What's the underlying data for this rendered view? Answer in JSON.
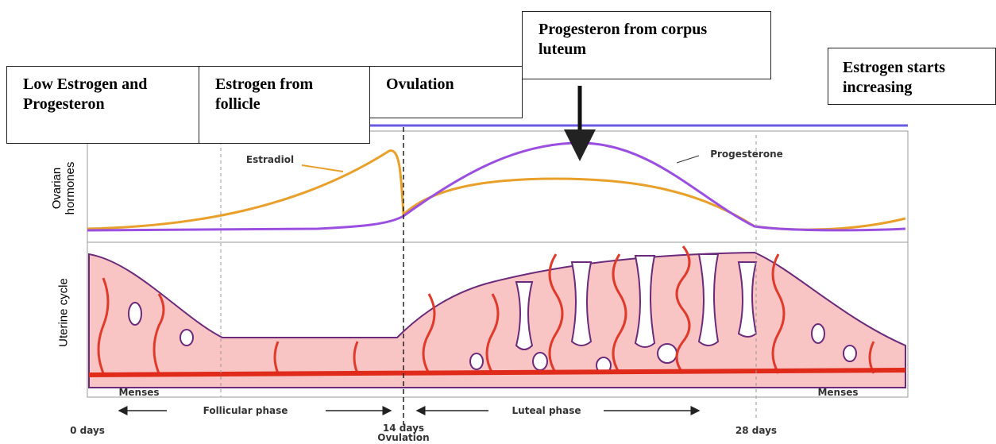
{
  "boxes": [
    "Low Estrogen and Progesteron",
    "Estrogen from follicle",
    "Ovulation",
    "Progesteron from corpus luteum",
    "Estrogen starts increasing"
  ],
  "diagram": {
    "axis_labels": [
      "Ovarian hormones",
      "Uterine cycle"
    ],
    "curve_labels": [
      "Estradiol",
      "Progesterone"
    ],
    "menses": [
      "Menses",
      "Menses"
    ],
    "phases": [
      "Follicular phase",
      "Luteal phase"
    ],
    "days": [
      "0 days",
      "14 days",
      "28 days"
    ],
    "ovulation": "Ovulation"
  }
}
